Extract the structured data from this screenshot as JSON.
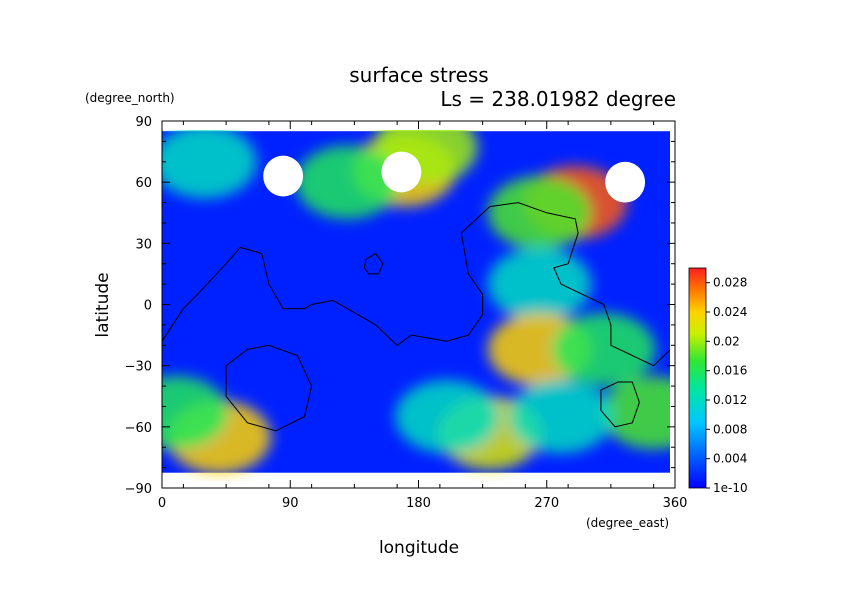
{
  "chart_data": {
    "type": "heatmap",
    "title": "surface stress",
    "subtitle": "Ls = 238.01982 degree",
    "xlabel": "longitude",
    "ylabel": "latitude",
    "x_units": "(degree_east)",
    "y_units": "(degree_north)",
    "xlim": [
      0,
      360
    ],
    "ylim": [
      -90,
      90
    ],
    "x_ticks": [
      "0",
      "90",
      "180",
      "270",
      "360"
    ],
    "y_ticks": [
      "90",
      "60",
      "30",
      "0",
      "−30",
      "−60",
      "−90"
    ],
    "x_tick_values": [
      0,
      90,
      180,
      270,
      360
    ],
    "y_tick_values": [
      90,
      60,
      30,
      0,
      -30,
      -60,
      -90
    ],
    "data_lat_range": [
      -82.5,
      85
    ],
    "colorbar": {
      "labels": [
        "0.028",
        "0.024",
        "0.02",
        "0.016",
        "0.012",
        "0.008",
        "0.004",
        "1e-10"
      ],
      "label_values": [
        0.028,
        0.024,
        0.02,
        0.016,
        0.012,
        0.008,
        0.004,
        0
      ],
      "range": [
        0,
        0.03
      ]
    },
    "features": [
      {
        "lon": 85,
        "lat": 63,
        "value": 0.032,
        "note": "saturated"
      },
      {
        "lon": 168,
        "lat": 65,
        "value": 0.032,
        "note": "saturated"
      },
      {
        "lon": 325,
        "lat": 60,
        "value": 0.032,
        "note": "saturated"
      },
      {
        "lon": 170,
        "lat": 66,
        "value": 0.024
      },
      {
        "lon": 185,
        "lat": 77,
        "value": 0.02
      },
      {
        "lon": 290,
        "lat": 50,
        "value": 0.028
      },
      {
        "lon": 265,
        "lat": 45,
        "value": 0.018
      },
      {
        "lon": 265,
        "lat": 10,
        "value": 0.012
      },
      {
        "lon": 265,
        "lat": -22,
        "value": 0.024
      },
      {
        "lon": 310,
        "lat": -22,
        "value": 0.016
      },
      {
        "lon": 40,
        "lat": -65,
        "value": 0.024
      },
      {
        "lon": 10,
        "lat": -53,
        "value": 0.016
      },
      {
        "lon": 230,
        "lat": -63,
        "value": 0.022
      },
      {
        "lon": 345,
        "lat": -53,
        "value": 0.018
      },
      {
        "lon": 30,
        "lat": 70,
        "value": 0.012
      },
      {
        "lon": 130,
        "lat": 60,
        "value": 0.016
      },
      {
        "lon": 200,
        "lat": -55,
        "value": 0.012
      },
      {
        "lon": 280,
        "lat": -55,
        "value": 0.012
      }
    ],
    "contour_outlines": [
      {
        "name": "western-boundary",
        "points": [
          [
            0,
            -18
          ],
          [
            15,
            -2
          ],
          [
            25,
            5
          ],
          [
            45,
            20
          ],
          [
            55,
            28
          ],
          [
            70,
            25
          ],
          [
            75,
            10
          ],
          [
            85,
            -2
          ],
          [
            100,
            -2
          ],
          [
            105,
            0
          ],
          [
            120,
            2
          ],
          [
            130,
            -2
          ],
          [
            150,
            -10
          ],
          [
            165,
            -20
          ],
          [
            175,
            -15
          ],
          [
            200,
            -18
          ],
          [
            215,
            -15
          ],
          [
            225,
            -5
          ],
          [
            225,
            5
          ],
          [
            215,
            15
          ],
          [
            210,
            35
          ],
          [
            230,
            48
          ],
          [
            250,
            50
          ],
          [
            270,
            45
          ],
          [
            290,
            42
          ],
          [
            292,
            35
          ],
          [
            285,
            20
          ],
          [
            275,
            18
          ],
          [
            280,
            10
          ],
          [
            295,
            5
          ],
          [
            310,
            0
          ],
          [
            315,
            -10
          ],
          [
            315,
            -20
          ],
          [
            330,
            -25
          ],
          [
            345,
            -30
          ],
          [
            360,
            -20
          ]
        ]
      },
      {
        "name": "small-loop",
        "closed": true,
        "points": [
          [
            143,
            22
          ],
          [
            150,
            25
          ],
          [
            155,
            20
          ],
          [
            152,
            15
          ],
          [
            145,
            15
          ],
          [
            142,
            18
          ]
        ]
      },
      {
        "name": "crater-left",
        "closed": true,
        "points": [
          [
            75,
            -20
          ],
          [
            95,
            -25
          ],
          [
            105,
            -40
          ],
          [
            100,
            -55
          ],
          [
            80,
            -62
          ],
          [
            60,
            -58
          ],
          [
            45,
            -45
          ],
          [
            45,
            -30
          ],
          [
            60,
            -22
          ]
        ]
      },
      {
        "name": "crater-right",
        "closed": true,
        "points": [
          [
            320,
            -38
          ],
          [
            330,
            -38
          ],
          [
            335,
            -48
          ],
          [
            330,
            -58
          ],
          [
            318,
            -60
          ],
          [
            308,
            -52
          ],
          [
            308,
            -42
          ]
        ]
      }
    ]
  }
}
